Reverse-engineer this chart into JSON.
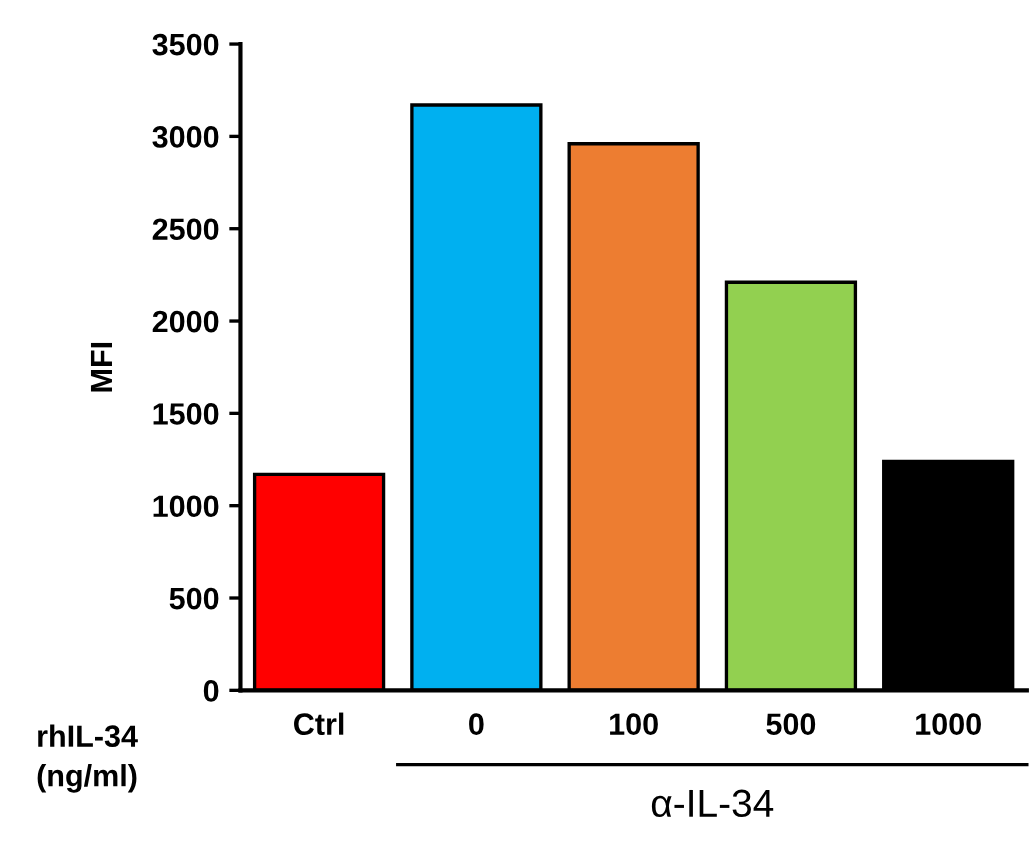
{
  "chart_data": {
    "type": "bar",
    "ylabel": "MFI",
    "categories": [
      "Ctrl",
      "0",
      "100",
      "500",
      "1000"
    ],
    "values": [
      1170,
      3170,
      2960,
      2210,
      1240
    ],
    "colors": [
      "#ff0000",
      "#00b0f0",
      "#ed7d31",
      "#92d050",
      "#000000"
    ],
    "ylim": [
      0,
      3500
    ],
    "yticks": [
      0,
      500,
      1000,
      1500,
      2000,
      2500,
      3000,
      3500
    ],
    "grid": false,
    "annotations": [
      "rhIL-34\n(ng/ml)",
      "α-IL-34"
    ]
  }
}
